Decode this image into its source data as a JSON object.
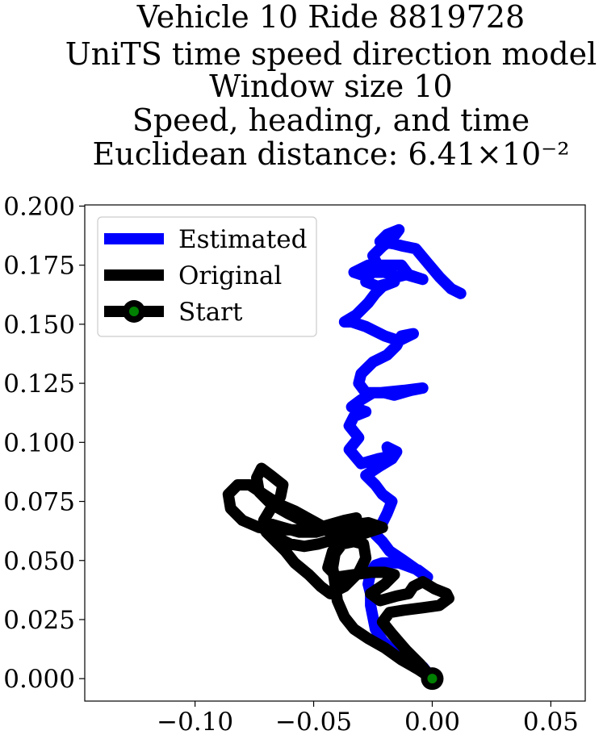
{
  "chart_data": {
    "type": "line",
    "title_lines": [
      "Vehicle 10 Ride 8819728",
      "UniTS time speed direction model",
      "Window size 10",
      "Speed, heading, and time",
      "Euclidean distance: 6.41×10⁻²"
    ],
    "xlabel": "",
    "ylabel": "",
    "xlim": [
      -0.1465,
      0.0645
    ],
    "ylim": [
      -0.0095,
      0.2005
    ],
    "xticks": [
      -0.1,
      -0.05,
      0.0,
      0.05
    ],
    "xtick_labels": [
      "−0.10",
      "−0.05",
      "0.00",
      "0.05"
    ],
    "yticks": [
      0.0,
      0.025,
      0.05,
      0.075,
      0.1,
      0.125,
      0.15,
      0.175,
      0.2
    ],
    "ytick_labels": [
      "0.000",
      "0.025",
      "0.050",
      "0.075",
      "0.100",
      "0.125",
      "0.150",
      "0.175",
      "0.200"
    ],
    "grid": false,
    "legend_position": "top-left",
    "series": [
      {
        "name": "Estimated",
        "color": "#0000ff",
        "x": [
          0.0,
          -0.004,
          -0.01,
          -0.016,
          -0.021,
          -0.024,
          -0.025,
          -0.026,
          -0.026,
          -0.027,
          -0.026,
          -0.024,
          -0.021,
          -0.014,
          -0.006,
          -0.002,
          -0.005,
          -0.012,
          -0.018,
          -0.021,
          -0.024,
          -0.021,
          -0.019,
          -0.017,
          -0.021,
          -0.024,
          -0.028,
          -0.022,
          -0.017,
          -0.015,
          -0.019,
          -0.018,
          -0.023,
          -0.03,
          -0.035,
          -0.031,
          -0.035,
          -0.033,
          -0.028,
          -0.034,
          -0.03,
          -0.025,
          -0.02,
          -0.016,
          -0.009,
          -0.004,
          -0.012,
          -0.022,
          -0.028,
          -0.031,
          -0.03,
          -0.025,
          -0.019,
          -0.015,
          -0.013,
          -0.008,
          -0.014,
          -0.02,
          -0.028,
          -0.034,
          -0.037,
          -0.032,
          -0.027,
          -0.024,
          -0.021,
          -0.016,
          -0.023,
          -0.028,
          -0.026,
          -0.02,
          -0.015,
          -0.011,
          -0.004,
          -0.01,
          -0.013,
          -0.019,
          -0.027,
          -0.033,
          -0.027,
          -0.023,
          -0.025,
          -0.021,
          -0.017,
          -0.014,
          -0.019,
          -0.022,
          -0.016,
          -0.012,
          -0.007,
          -0.002,
          0.003,
          0.008,
          0.012
        ],
        "y": [
          0.0,
          0.005,
          0.008,
          0.011,
          0.016,
          0.021,
          0.026,
          0.031,
          0.036,
          0.04,
          0.045,
          0.048,
          0.049,
          0.049,
          0.046,
          0.043,
          0.045,
          0.05,
          0.054,
          0.058,
          0.061,
          0.066,
          0.07,
          0.075,
          0.078,
          0.082,
          0.086,
          0.09,
          0.093,
          0.096,
          0.098,
          0.094,
          0.093,
          0.091,
          0.097,
          0.102,
          0.107,
          0.111,
          0.113,
          0.115,
          0.118,
          0.121,
          0.121,
          0.12,
          0.122,
          0.123,
          0.122,
          0.121,
          0.121,
          0.125,
          0.129,
          0.134,
          0.137,
          0.141,
          0.145,
          0.146,
          0.143,
          0.145,
          0.149,
          0.151,
          0.151,
          0.154,
          0.159,
          0.163,
          0.166,
          0.168,
          0.166,
          0.168,
          0.172,
          0.172,
          0.17,
          0.171,
          0.169,
          0.171,
          0.175,
          0.175,
          0.175,
          0.172,
          0.17,
          0.175,
          0.179,
          0.183,
          0.186,
          0.19,
          0.188,
          0.185,
          0.184,
          0.183,
          0.182,
          0.176,
          0.17,
          0.165,
          0.163
        ]
      },
      {
        "name": "Original",
        "color": "#000000",
        "x": [
          0.0,
          -0.006,
          -0.013,
          -0.02,
          -0.027,
          -0.033,
          -0.037,
          -0.04,
          -0.041,
          -0.042,
          -0.041,
          -0.038,
          -0.033,
          -0.029,
          -0.028,
          -0.031,
          -0.037,
          -0.043,
          -0.047,
          -0.052,
          -0.058,
          -0.062,
          -0.066,
          -0.07,
          -0.071,
          -0.068,
          -0.064,
          -0.063,
          -0.068,
          -0.072,
          -0.074,
          -0.073,
          -0.068,
          -0.061,
          -0.053,
          -0.045,
          -0.039,
          -0.036,
          -0.04,
          -0.049,
          -0.058,
          -0.065,
          -0.071,
          -0.077,
          -0.082,
          -0.086,
          -0.085,
          -0.08,
          -0.073,
          -0.065,
          -0.058,
          -0.051,
          -0.044,
          -0.037,
          -0.032,
          -0.034,
          -0.041,
          -0.048,
          -0.054,
          -0.06,
          -0.066,
          -0.072,
          -0.07,
          -0.063,
          -0.056,
          -0.049,
          -0.042,
          -0.034,
          -0.027,
          -0.021,
          -0.027,
          -0.036,
          -0.042,
          -0.044,
          -0.04,
          -0.033,
          -0.026,
          -0.02,
          -0.016,
          -0.02,
          -0.026,
          -0.022,
          -0.015,
          -0.01,
          -0.008,
          -0.004,
          0.001,
          0.006,
          0.007,
          0.003,
          -0.004,
          -0.012,
          -0.018,
          -0.021,
          -0.017,
          -0.011,
          -0.005,
          0.0
        ],
        "y": [
          0.0,
          0.004,
          0.008,
          0.013,
          0.017,
          0.021,
          0.026,
          0.033,
          0.04,
          0.047,
          0.053,
          0.057,
          0.058,
          0.057,
          0.051,
          0.045,
          0.039,
          0.036,
          0.039,
          0.044,
          0.049,
          0.054,
          0.058,
          0.062,
          0.067,
          0.072,
          0.077,
          0.082,
          0.086,
          0.089,
          0.085,
          0.079,
          0.074,
          0.07,
          0.066,
          0.063,
          0.06,
          0.058,
          0.061,
          0.066,
          0.071,
          0.074,
          0.078,
          0.082,
          0.082,
          0.078,
          0.072,
          0.067,
          0.064,
          0.063,
          0.063,
          0.063,
          0.065,
          0.067,
          0.068,
          0.063,
          0.059,
          0.057,
          0.056,
          0.057,
          0.06,
          0.064,
          0.066,
          0.064,
          0.062,
          0.062,
          0.064,
          0.065,
          0.066,
          0.064,
          0.062,
          0.059,
          0.054,
          0.047,
          0.043,
          0.044,
          0.045,
          0.045,
          0.044,
          0.04,
          0.036,
          0.033,
          0.035,
          0.036,
          0.039,
          0.041,
          0.038,
          0.036,
          0.034,
          0.031,
          0.03,
          0.029,
          0.028,
          0.024,
          0.019,
          0.012,
          0.006,
          0.0
        ]
      },
      {
        "name": "Start",
        "color": "#000000",
        "marker_color": "#008000",
        "x": [
          0.0
        ],
        "y": [
          0.0
        ]
      }
    ]
  }
}
